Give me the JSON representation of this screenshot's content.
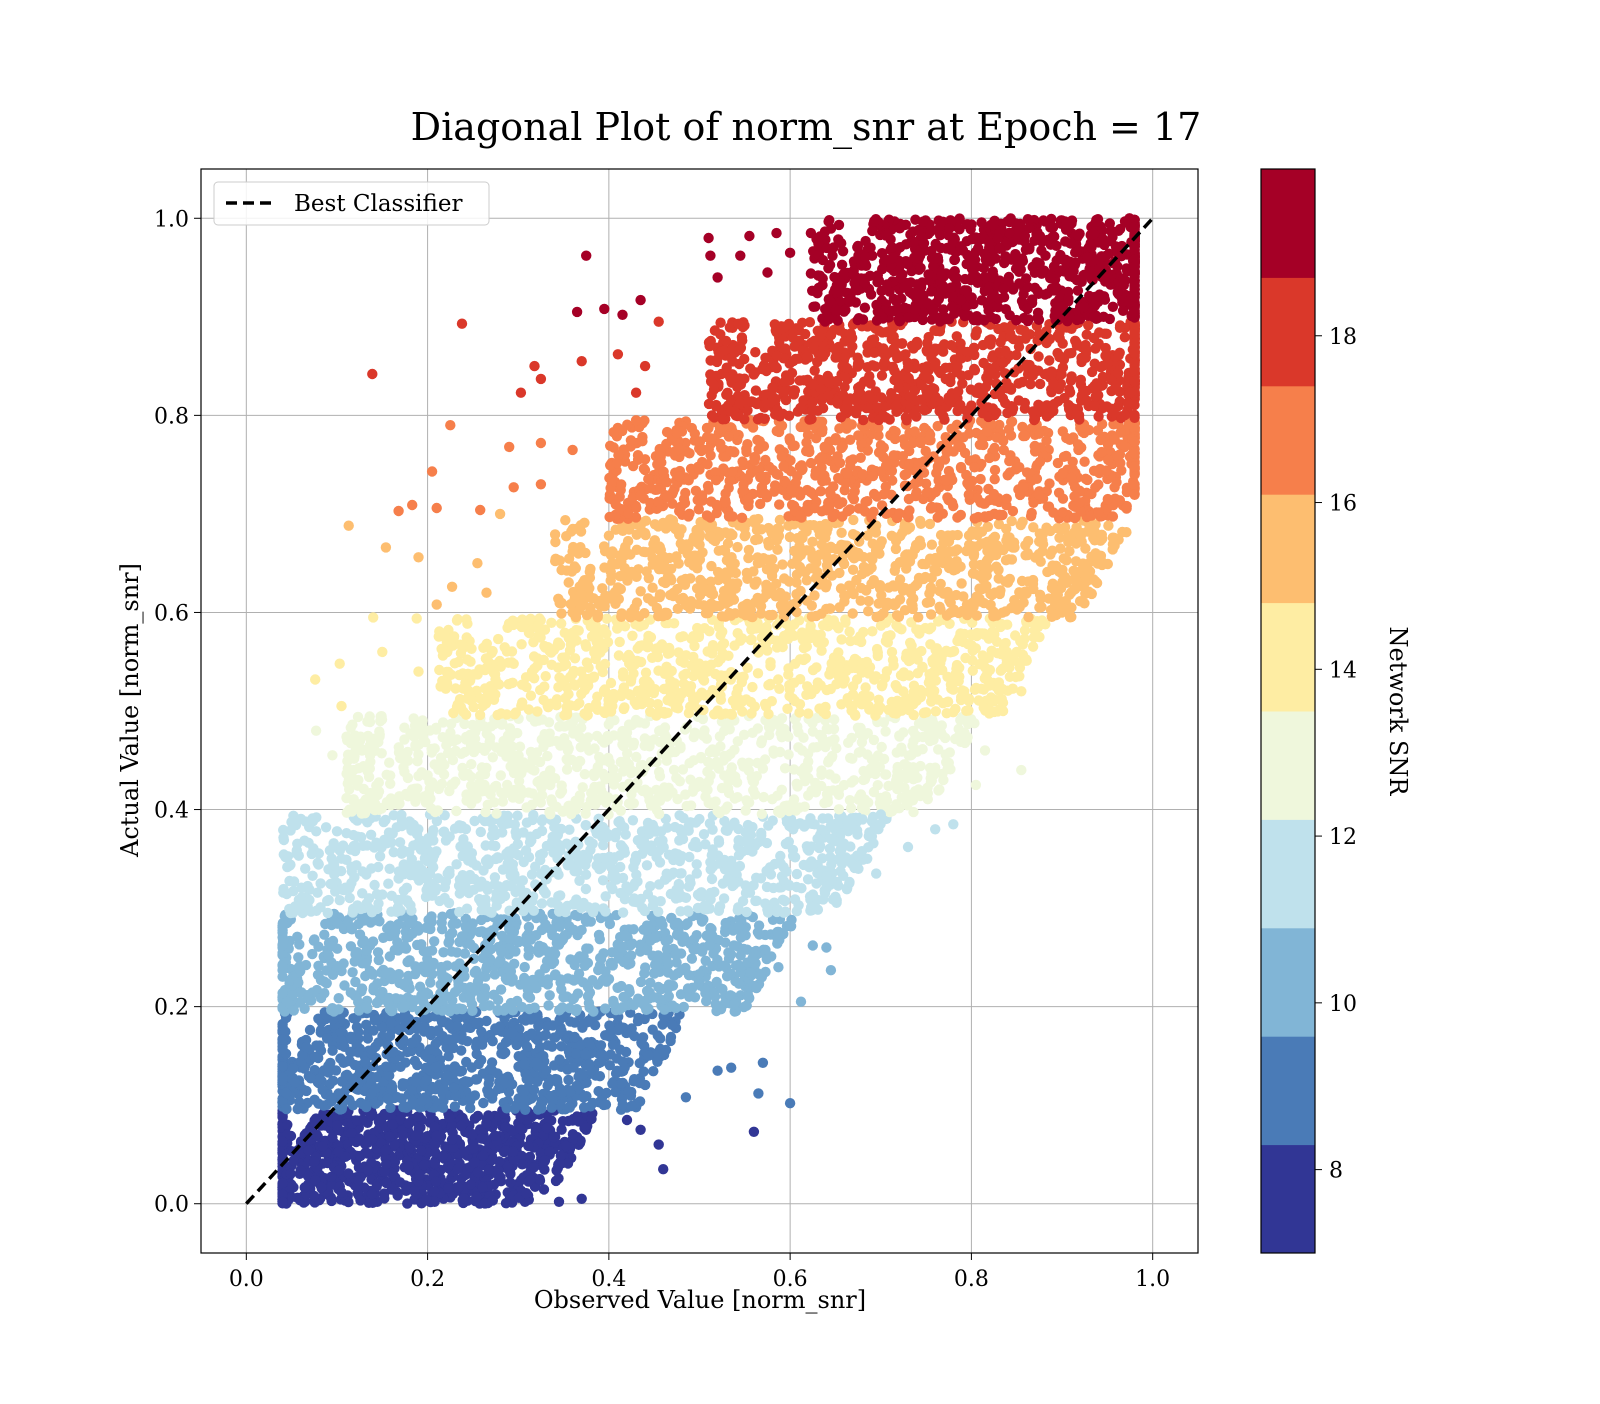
{
  "chart_data": {
    "type": "scatter",
    "title": "Diagonal Plot of norm_snr at Epoch = 17",
    "xlabel": "Observed Value [norm_snr]",
    "ylabel": "Actual Value [norm_snr]",
    "xlim": [
      -0.05,
      1.05
    ],
    "ylim": [
      -0.05,
      1.05
    ],
    "x_ticks": [
      "0.0",
      "0.2",
      "0.4",
      "0.6",
      "0.8",
      "1.0"
    ],
    "y_ticks": [
      "0.0",
      "0.2",
      "0.4",
      "0.6",
      "0.8",
      "1.0"
    ],
    "grid": true,
    "legend": {
      "placement": "top-left",
      "entries": [
        {
          "label": "Best Classifier",
          "style": "dashed",
          "color": "#000000"
        }
      ]
    },
    "reference_line": {
      "label": "Best Classifier",
      "x": [
        0.0,
        1.0
      ],
      "y": [
        0.0,
        1.0
      ]
    },
    "colorbar": {
      "label": "Network SNR",
      "range": [
        7,
        20
      ],
      "ticks": [
        "8",
        "10",
        "12",
        "14",
        "16",
        "18"
      ],
      "tick_values": [
        8,
        10,
        12,
        14,
        16,
        18
      ],
      "bins": [
        {
          "min": 7.0,
          "max": 8.3,
          "color": "#313695"
        },
        {
          "min": 8.3,
          "max": 9.6,
          "color": "#4a7bb7"
        },
        {
          "min": 9.6,
          "max": 10.9,
          "color": "#81b5d6"
        },
        {
          "min": 10.9,
          "max": 12.2,
          "color": "#bfe1ec"
        },
        {
          "min": 12.2,
          "max": 13.5,
          "color": "#eff7dc"
        },
        {
          "min": 13.5,
          "max": 14.8,
          "color": "#feeda3"
        },
        {
          "min": 14.8,
          "max": 16.1,
          "color": "#fdbe70"
        },
        {
          "min": 16.1,
          "max": 17.4,
          "color": "#f67f4b"
        },
        {
          "min": 17.4,
          "max": 18.7,
          "color": "#da382a"
        },
        {
          "min": 18.7,
          "max": 20.0,
          "color": "#a50026"
        }
      ]
    },
    "bands": [
      {
        "y_range": [
          0.0,
          0.095
        ],
        "x_core": [
          0.05,
          0.3
        ],
        "color": "#313695"
      },
      {
        "y_range": [
          0.095,
          0.195
        ],
        "x_core": [
          0.05,
          0.4
        ],
        "color": "#4a7bb7"
      },
      {
        "y_range": [
          0.195,
          0.295
        ],
        "x_core": [
          0.06,
          0.52
        ],
        "color": "#81b5d6"
      },
      {
        "y_range": [
          0.295,
          0.395
        ],
        "x_core": [
          0.08,
          0.62
        ],
        "color": "#bfe1ec"
      },
      {
        "y_range": [
          0.395,
          0.495
        ],
        "x_core": [
          0.15,
          0.72
        ],
        "color": "#eff7dc"
      },
      {
        "y_range": [
          0.495,
          0.595
        ],
        "x_core": [
          0.25,
          0.8
        ],
        "color": "#feeda3"
      },
      {
        "y_range": [
          0.595,
          0.695
        ],
        "x_core": [
          0.38,
          0.89
        ],
        "color": "#fdbe70"
      },
      {
        "y_range": [
          0.695,
          0.795
        ],
        "x_core": [
          0.44,
          0.94
        ],
        "color": "#f67f4b"
      },
      {
        "y_range": [
          0.795,
          0.895
        ],
        "x_core": [
          0.55,
          0.975
        ],
        "color": "#da382a"
      },
      {
        "y_range": [
          0.895,
          1.0
        ],
        "x_core": [
          0.66,
          0.98
        ],
        "color": "#a50026"
      }
    ],
    "outliers": [
      {
        "x": 0.375,
        "y": 0.962,
        "c": "#a50026"
      },
      {
        "x": 0.365,
        "y": 0.905,
        "c": "#a50026"
      },
      {
        "x": 0.395,
        "y": 0.908,
        "c": "#a50026"
      },
      {
        "x": 0.415,
        "y": 0.902,
        "c": "#a50026"
      },
      {
        "x": 0.435,
        "y": 0.917,
        "c": "#a50026"
      },
      {
        "x": 0.512,
        "y": 0.962,
        "c": "#a50026"
      },
      {
        "x": 0.52,
        "y": 0.94,
        "c": "#a50026"
      },
      {
        "x": 0.545,
        "y": 0.962,
        "c": "#a50026"
      },
      {
        "x": 0.555,
        "y": 0.982,
        "c": "#a50026"
      },
      {
        "x": 0.575,
        "y": 0.945,
        "c": "#a50026"
      },
      {
        "x": 0.585,
        "y": 0.985,
        "c": "#a50026"
      },
      {
        "x": 0.51,
        "y": 0.98,
        "c": "#a50026"
      },
      {
        "x": 0.6,
        "y": 0.965,
        "c": "#a50026"
      },
      {
        "x": 0.238,
        "y": 0.893,
        "c": "#da382a"
      },
      {
        "x": 0.139,
        "y": 0.842,
        "c": "#da382a"
      },
      {
        "x": 0.318,
        "y": 0.85,
        "c": "#da382a"
      },
      {
        "x": 0.303,
        "y": 0.823,
        "c": "#da382a"
      },
      {
        "x": 0.325,
        "y": 0.837,
        "c": "#da382a"
      },
      {
        "x": 0.37,
        "y": 0.855,
        "c": "#da382a"
      },
      {
        "x": 0.41,
        "y": 0.862,
        "c": "#da382a"
      },
      {
        "x": 0.44,
        "y": 0.85,
        "c": "#da382a"
      },
      {
        "x": 0.455,
        "y": 0.895,
        "c": "#da382a"
      },
      {
        "x": 0.43,
        "y": 0.823,
        "c": "#da382a"
      },
      {
        "x": 0.58,
        "y": 0.82,
        "c": "#da382a"
      },
      {
        "x": 0.975,
        "y": 0.823,
        "c": "#da382a"
      },
      {
        "x": 0.225,
        "y": 0.79,
        "c": "#f67f4b"
      },
      {
        "x": 0.29,
        "y": 0.768,
        "c": "#f67f4b"
      },
      {
        "x": 0.325,
        "y": 0.772,
        "c": "#f67f4b"
      },
      {
        "x": 0.205,
        "y": 0.743,
        "c": "#f67f4b"
      },
      {
        "x": 0.168,
        "y": 0.703,
        "c": "#f67f4b"
      },
      {
        "x": 0.183,
        "y": 0.709,
        "c": "#f67f4b"
      },
      {
        "x": 0.21,
        "y": 0.706,
        "c": "#f67f4b"
      },
      {
        "x": 0.258,
        "y": 0.704,
        "c": "#f67f4b"
      },
      {
        "x": 0.295,
        "y": 0.727,
        "c": "#f67f4b"
      },
      {
        "x": 0.325,
        "y": 0.73,
        "c": "#f67f4b"
      },
      {
        "x": 0.36,
        "y": 0.765,
        "c": "#f67f4b"
      },
      {
        "x": 0.43,
        "y": 0.795,
        "c": "#f67f4b"
      },
      {
        "x": 0.113,
        "y": 0.688,
        "c": "#fdbe70"
      },
      {
        "x": 0.154,
        "y": 0.666,
        "c": "#fdbe70"
      },
      {
        "x": 0.19,
        "y": 0.656,
        "c": "#fdbe70"
      },
      {
        "x": 0.227,
        "y": 0.626,
        "c": "#fdbe70"
      },
      {
        "x": 0.21,
        "y": 0.608,
        "c": "#fdbe70"
      },
      {
        "x": 0.255,
        "y": 0.65,
        "c": "#fdbe70"
      },
      {
        "x": 0.28,
        "y": 0.7,
        "c": "#fdbe70"
      },
      {
        "x": 0.265,
        "y": 0.62,
        "c": "#fdbe70"
      },
      {
        "x": 0.9,
        "y": 0.6,
        "c": "#fdbe70"
      },
      {
        "x": 0.875,
        "y": 0.605,
        "c": "#fdbe70"
      },
      {
        "x": 0.915,
        "y": 0.632,
        "c": "#fdbe70"
      },
      {
        "x": 0.937,
        "y": 0.66,
        "c": "#fdbe70"
      },
      {
        "x": 0.14,
        "y": 0.595,
        "c": "#feeda3"
      },
      {
        "x": 0.15,
        "y": 0.56,
        "c": "#feeda3"
      },
      {
        "x": 0.103,
        "y": 0.548,
        "c": "#feeda3"
      },
      {
        "x": 0.076,
        "y": 0.532,
        "c": "#feeda3"
      },
      {
        "x": 0.188,
        "y": 0.594,
        "c": "#feeda3"
      },
      {
        "x": 0.19,
        "y": 0.54,
        "c": "#feeda3"
      },
      {
        "x": 0.105,
        "y": 0.505,
        "c": "#feeda3"
      },
      {
        "x": 0.855,
        "y": 0.52,
        "c": "#feeda3"
      },
      {
        "x": 0.85,
        "y": 0.56,
        "c": "#feeda3"
      },
      {
        "x": 0.875,
        "y": 0.575,
        "c": "#feeda3"
      },
      {
        "x": 0.835,
        "y": 0.5,
        "c": "#feeda3"
      },
      {
        "x": 0.077,
        "y": 0.48,
        "c": "#eff7dc"
      },
      {
        "x": 0.095,
        "y": 0.455,
        "c": "#eff7dc"
      },
      {
        "x": 0.12,
        "y": 0.475,
        "c": "#eff7dc"
      },
      {
        "x": 0.855,
        "y": 0.44,
        "c": "#eff7dc"
      },
      {
        "x": 0.805,
        "y": 0.425,
        "c": "#eff7dc"
      },
      {
        "x": 0.815,
        "y": 0.46,
        "c": "#eff7dc"
      },
      {
        "x": 0.795,
        "y": 0.47,
        "c": "#eff7dc"
      },
      {
        "x": 0.78,
        "y": 0.385,
        "c": "#bfe1ec"
      },
      {
        "x": 0.76,
        "y": 0.38,
        "c": "#bfe1ec"
      },
      {
        "x": 0.73,
        "y": 0.362,
        "c": "#bfe1ec"
      },
      {
        "x": 0.7,
        "y": 0.395,
        "c": "#bfe1ec"
      },
      {
        "x": 0.695,
        "y": 0.335,
        "c": "#bfe1ec"
      },
      {
        "x": 0.685,
        "y": 0.35,
        "c": "#bfe1ec"
      },
      {
        "x": 0.68,
        "y": 0.39,
        "c": "#bfe1ec"
      },
      {
        "x": 0.088,
        "y": 0.382,
        "c": "#bfe1ec"
      },
      {
        "x": 0.065,
        "y": 0.34,
        "c": "#bfe1ec"
      },
      {
        "x": 0.612,
        "y": 0.205,
        "c": "#81b5d6"
      },
      {
        "x": 0.645,
        "y": 0.237,
        "c": "#81b5d6"
      },
      {
        "x": 0.64,
        "y": 0.26,
        "c": "#81b5d6"
      },
      {
        "x": 0.625,
        "y": 0.262,
        "c": "#81b5d6"
      },
      {
        "x": 0.587,
        "y": 0.24,
        "c": "#81b5d6"
      },
      {
        "x": 0.045,
        "y": 0.205,
        "c": "#81b5d6"
      },
      {
        "x": 0.6,
        "y": 0.102,
        "c": "#4a7bb7"
      },
      {
        "x": 0.57,
        "y": 0.143,
        "c": "#4a7bb7"
      },
      {
        "x": 0.565,
        "y": 0.112,
        "c": "#4a7bb7"
      },
      {
        "x": 0.535,
        "y": 0.138,
        "c": "#4a7bb7"
      },
      {
        "x": 0.52,
        "y": 0.135,
        "c": "#4a7bb7"
      },
      {
        "x": 0.485,
        "y": 0.108,
        "c": "#4a7bb7"
      },
      {
        "x": 0.56,
        "y": 0.073,
        "c": "#313695"
      },
      {
        "x": 0.46,
        "y": 0.035,
        "c": "#313695"
      },
      {
        "x": 0.455,
        "y": 0.06,
        "c": "#313695"
      },
      {
        "x": 0.435,
        "y": 0.075,
        "c": "#313695"
      },
      {
        "x": 0.42,
        "y": 0.085,
        "c": "#313695"
      },
      {
        "x": 0.37,
        "y": 0.005,
        "c": "#313695"
      },
      {
        "x": 0.345,
        "y": 0.002,
        "c": "#313695"
      },
      {
        "x": 0.04,
        "y": 0.063,
        "c": "#313695"
      }
    ]
  }
}
